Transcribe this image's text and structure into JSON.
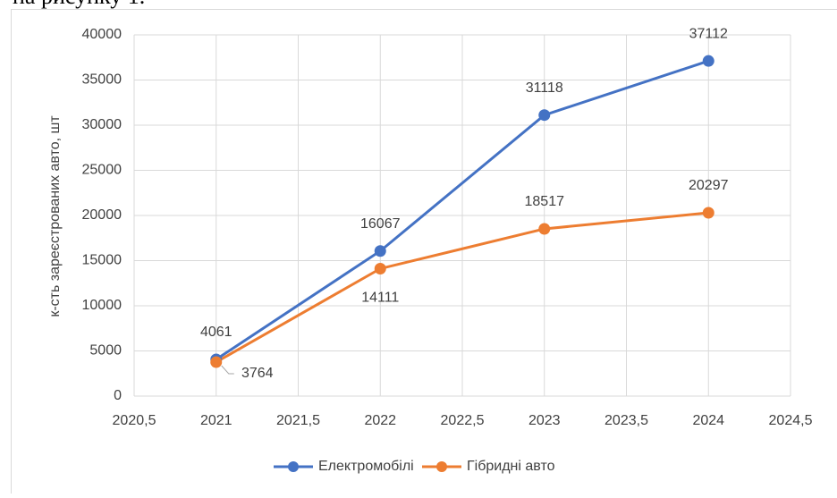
{
  "header_text": "на рисунку 1.",
  "chart_data": {
    "type": "line",
    "ylabel": "к-сть зареєстрованих авто, шт",
    "x": [
      2021,
      2022,
      2023,
      2024
    ],
    "series": [
      {
        "name": "Електромобілі",
        "color": "#4472c4",
        "values": [
          4061,
          16067,
          31118,
          37112
        ]
      },
      {
        "name": "Гібридні авто",
        "color": "#ed7d31",
        "values": [
          3764,
          14111,
          18517,
          20297
        ]
      }
    ],
    "xlim": [
      2020.5,
      2024.5
    ],
    "xticks": [
      {
        "value": 2020.5,
        "label": "2020,5"
      },
      2021,
      {
        "value": 2021.5,
        "label": "2021,5"
      },
      2022,
      {
        "value": 2022.5,
        "label": "2022,5"
      },
      2023,
      {
        "value": 2023.5,
        "label": "2023,5"
      },
      2024,
      {
        "value": 2024.5,
        "label": "2024,5"
      }
    ],
    "ylim": [
      0,
      40000
    ],
    "yticks": [
      0,
      5000,
      10000,
      15000,
      20000,
      25000,
      30000,
      35000,
      40000
    ],
    "grid": true,
    "legend": "bottom"
  }
}
